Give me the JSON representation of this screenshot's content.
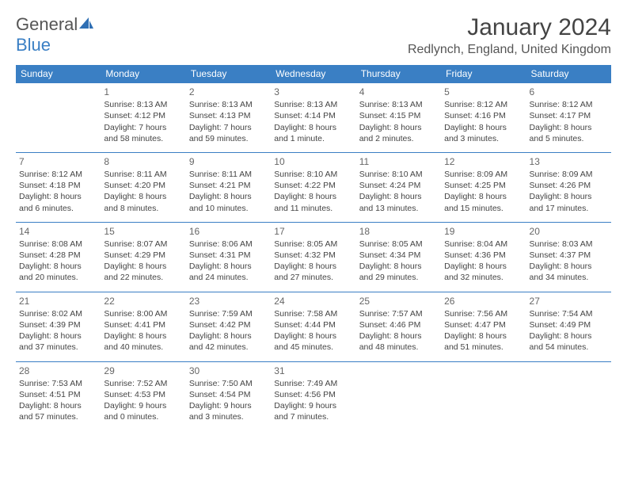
{
  "logo": {
    "text_general": "General",
    "text_blue": "Blue",
    "sail_color": "#2f6fb4"
  },
  "header": {
    "title": "January 2024",
    "location": "Redlynch, England, United Kingdom"
  },
  "columns": [
    "Sunday",
    "Monday",
    "Tuesday",
    "Wednesday",
    "Thursday",
    "Friday",
    "Saturday"
  ],
  "colors": {
    "header_bg": "#3a7fc4",
    "header_fg": "#ffffff",
    "row_border": "#3a7fc4",
    "text": "#444444"
  },
  "weeks": [
    [
      null,
      {
        "n": "1",
        "sr": "Sunrise: 8:13 AM",
        "ss": "Sunset: 4:12 PM",
        "d1": "Daylight: 7 hours",
        "d2": "and 58 minutes."
      },
      {
        "n": "2",
        "sr": "Sunrise: 8:13 AM",
        "ss": "Sunset: 4:13 PM",
        "d1": "Daylight: 7 hours",
        "d2": "and 59 minutes."
      },
      {
        "n": "3",
        "sr": "Sunrise: 8:13 AM",
        "ss": "Sunset: 4:14 PM",
        "d1": "Daylight: 8 hours",
        "d2": "and 1 minute."
      },
      {
        "n": "4",
        "sr": "Sunrise: 8:13 AM",
        "ss": "Sunset: 4:15 PM",
        "d1": "Daylight: 8 hours",
        "d2": "and 2 minutes."
      },
      {
        "n": "5",
        "sr": "Sunrise: 8:12 AM",
        "ss": "Sunset: 4:16 PM",
        "d1": "Daylight: 8 hours",
        "d2": "and 3 minutes."
      },
      {
        "n": "6",
        "sr": "Sunrise: 8:12 AM",
        "ss": "Sunset: 4:17 PM",
        "d1": "Daylight: 8 hours",
        "d2": "and 5 minutes."
      }
    ],
    [
      {
        "n": "7",
        "sr": "Sunrise: 8:12 AM",
        "ss": "Sunset: 4:18 PM",
        "d1": "Daylight: 8 hours",
        "d2": "and 6 minutes."
      },
      {
        "n": "8",
        "sr": "Sunrise: 8:11 AM",
        "ss": "Sunset: 4:20 PM",
        "d1": "Daylight: 8 hours",
        "d2": "and 8 minutes."
      },
      {
        "n": "9",
        "sr": "Sunrise: 8:11 AM",
        "ss": "Sunset: 4:21 PM",
        "d1": "Daylight: 8 hours",
        "d2": "and 10 minutes."
      },
      {
        "n": "10",
        "sr": "Sunrise: 8:10 AM",
        "ss": "Sunset: 4:22 PM",
        "d1": "Daylight: 8 hours",
        "d2": "and 11 minutes."
      },
      {
        "n": "11",
        "sr": "Sunrise: 8:10 AM",
        "ss": "Sunset: 4:24 PM",
        "d1": "Daylight: 8 hours",
        "d2": "and 13 minutes."
      },
      {
        "n": "12",
        "sr": "Sunrise: 8:09 AM",
        "ss": "Sunset: 4:25 PM",
        "d1": "Daylight: 8 hours",
        "d2": "and 15 minutes."
      },
      {
        "n": "13",
        "sr": "Sunrise: 8:09 AM",
        "ss": "Sunset: 4:26 PM",
        "d1": "Daylight: 8 hours",
        "d2": "and 17 minutes."
      }
    ],
    [
      {
        "n": "14",
        "sr": "Sunrise: 8:08 AM",
        "ss": "Sunset: 4:28 PM",
        "d1": "Daylight: 8 hours",
        "d2": "and 20 minutes."
      },
      {
        "n": "15",
        "sr": "Sunrise: 8:07 AM",
        "ss": "Sunset: 4:29 PM",
        "d1": "Daylight: 8 hours",
        "d2": "and 22 minutes."
      },
      {
        "n": "16",
        "sr": "Sunrise: 8:06 AM",
        "ss": "Sunset: 4:31 PM",
        "d1": "Daylight: 8 hours",
        "d2": "and 24 minutes."
      },
      {
        "n": "17",
        "sr": "Sunrise: 8:05 AM",
        "ss": "Sunset: 4:32 PM",
        "d1": "Daylight: 8 hours",
        "d2": "and 27 minutes."
      },
      {
        "n": "18",
        "sr": "Sunrise: 8:05 AM",
        "ss": "Sunset: 4:34 PM",
        "d1": "Daylight: 8 hours",
        "d2": "and 29 minutes."
      },
      {
        "n": "19",
        "sr": "Sunrise: 8:04 AM",
        "ss": "Sunset: 4:36 PM",
        "d1": "Daylight: 8 hours",
        "d2": "and 32 minutes."
      },
      {
        "n": "20",
        "sr": "Sunrise: 8:03 AM",
        "ss": "Sunset: 4:37 PM",
        "d1": "Daylight: 8 hours",
        "d2": "and 34 minutes."
      }
    ],
    [
      {
        "n": "21",
        "sr": "Sunrise: 8:02 AM",
        "ss": "Sunset: 4:39 PM",
        "d1": "Daylight: 8 hours",
        "d2": "and 37 minutes."
      },
      {
        "n": "22",
        "sr": "Sunrise: 8:00 AM",
        "ss": "Sunset: 4:41 PM",
        "d1": "Daylight: 8 hours",
        "d2": "and 40 minutes."
      },
      {
        "n": "23",
        "sr": "Sunrise: 7:59 AM",
        "ss": "Sunset: 4:42 PM",
        "d1": "Daylight: 8 hours",
        "d2": "and 42 minutes."
      },
      {
        "n": "24",
        "sr": "Sunrise: 7:58 AM",
        "ss": "Sunset: 4:44 PM",
        "d1": "Daylight: 8 hours",
        "d2": "and 45 minutes."
      },
      {
        "n": "25",
        "sr": "Sunrise: 7:57 AM",
        "ss": "Sunset: 4:46 PM",
        "d1": "Daylight: 8 hours",
        "d2": "and 48 minutes."
      },
      {
        "n": "26",
        "sr": "Sunrise: 7:56 AM",
        "ss": "Sunset: 4:47 PM",
        "d1": "Daylight: 8 hours",
        "d2": "and 51 minutes."
      },
      {
        "n": "27",
        "sr": "Sunrise: 7:54 AM",
        "ss": "Sunset: 4:49 PM",
        "d1": "Daylight: 8 hours",
        "d2": "and 54 minutes."
      }
    ],
    [
      {
        "n": "28",
        "sr": "Sunrise: 7:53 AM",
        "ss": "Sunset: 4:51 PM",
        "d1": "Daylight: 8 hours",
        "d2": "and 57 minutes."
      },
      {
        "n": "29",
        "sr": "Sunrise: 7:52 AM",
        "ss": "Sunset: 4:53 PM",
        "d1": "Daylight: 9 hours",
        "d2": "and 0 minutes."
      },
      {
        "n": "30",
        "sr": "Sunrise: 7:50 AM",
        "ss": "Sunset: 4:54 PM",
        "d1": "Daylight: 9 hours",
        "d2": "and 3 minutes."
      },
      {
        "n": "31",
        "sr": "Sunrise: 7:49 AM",
        "ss": "Sunset: 4:56 PM",
        "d1": "Daylight: 9 hours",
        "d2": "and 7 minutes."
      },
      null,
      null,
      null
    ]
  ]
}
